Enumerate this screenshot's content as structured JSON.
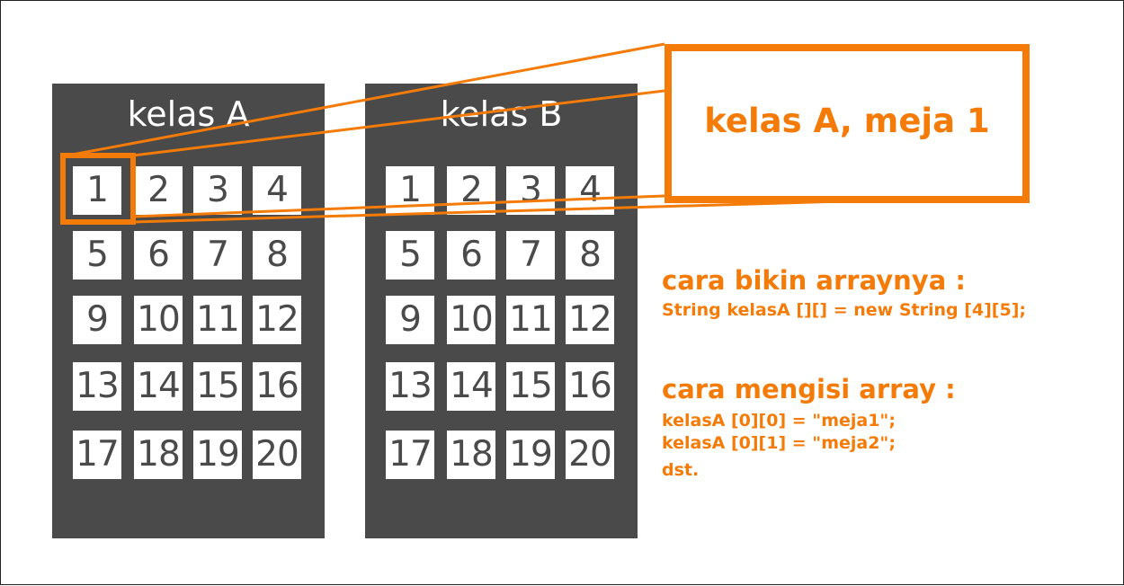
{
  "panels": [
    {
      "title": "kelas A",
      "cells": [
        "1",
        "2",
        "3",
        "4",
        "5",
        "6",
        "7",
        "8",
        "9",
        "10",
        "11",
        "12",
        "13",
        "14",
        "15",
        "16",
        "17",
        "18",
        "19",
        "20"
      ]
    },
    {
      "title": "kelas B",
      "cells": [
        "1",
        "2",
        "3",
        "4",
        "5",
        "6",
        "7",
        "8",
        "9",
        "10",
        "11",
        "12",
        "13",
        "14",
        "15",
        "16",
        "17",
        "18",
        "19",
        "20"
      ]
    }
  ],
  "highlight": {
    "panel": "kelas A",
    "cell": "1",
    "label": "kelas A, meja 1"
  },
  "notes": {
    "create_heading": "cara bikin arraynya :",
    "create_code": "String kelasA [][] = new String [4][5];",
    "fill_heading": "cara mengisi array :",
    "fill_lines": [
      "kelasA [0][0] = \"meja1\";",
      "kelasA [0][1] = \"meja2\";",
      "dst."
    ]
  },
  "colors": {
    "accent": "#f47b07",
    "panel": "#4a4a4a",
    "cell": "#ffffff"
  }
}
